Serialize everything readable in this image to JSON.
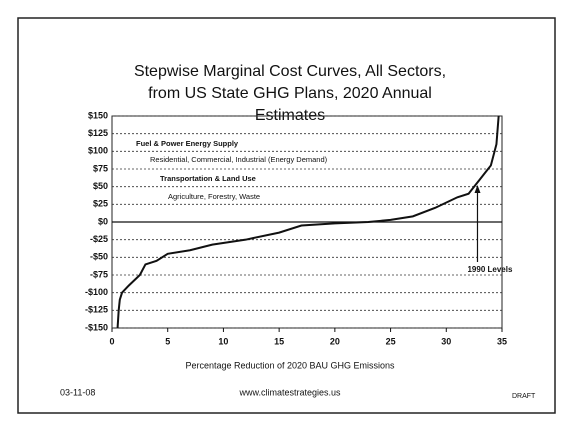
{
  "chart_data": {
    "type": "line",
    "title": [
      "Stepwise Marginal Cost Curves, All Sectors,",
      "from US State GHG Plans, 2020 Annual",
      "Estimates"
    ],
    "x_label": "Percentage Reduction of  2020 BAU GHG Emissions",
    "legend_notes": [
      "Fuel & Power Energy Supply",
      "Residential, Commercial, Industrial (Energy Demand)",
      "Transportation & Land Use",
      "Agriculture, Forestry, Waste"
    ],
    "annotation": "1990 Levels",
    "annotation_x": 32.8,
    "footer": {
      "date": "03-11-08",
      "url": "www.climatestrategies.us",
      "status": "DRAFT"
    },
    "xlim": [
      0,
      35
    ],
    "xticks": [
      0,
      5,
      10,
      15,
      20,
      25,
      30,
      35
    ],
    "ylim": [
      -150,
      150
    ],
    "yticks": [
      {
        "value": 150,
        "label": "$150"
      },
      {
        "value": 125,
        "label": "$125"
      },
      {
        "value": 100,
        "label": "$100"
      },
      {
        "value": 75,
        "label": "$75"
      },
      {
        "value": 50,
        "label": "$50"
      },
      {
        "value": 25,
        "label": "$25"
      },
      {
        "value": 0,
        "label": "$0"
      },
      {
        "value": -25,
        "label": "-$25"
      },
      {
        "value": -50,
        "label": "-$50"
      },
      {
        "value": -75,
        "label": "-$75"
      },
      {
        "value": -100,
        "label": "-$100"
      },
      {
        "value": -125,
        "label": "-$125"
      },
      {
        "value": -150,
        "label": "-$150"
      }
    ],
    "grid": true,
    "series": [
      {
        "name": "Marginal cost",
        "color": "#111111",
        "x": [
          0.5,
          0.6,
          0.7,
          0.9,
          1.5,
          2.5,
          3,
          4,
          5,
          7,
          9,
          12,
          15,
          17,
          20,
          23,
          25,
          27,
          29,
          31,
          32,
          32.5,
          33,
          33.5,
          34,
          34.5,
          34.7
        ],
        "values": [
          -150,
          -125,
          -110,
          -100,
          -90,
          -75,
          -60,
          -55,
          -45,
          -40,
          -32,
          -25,
          -15,
          -5,
          -2,
          0,
          3,
          8,
          20,
          35,
          40,
          50,
          60,
          70,
          80,
          110,
          150
        ]
      }
    ]
  }
}
